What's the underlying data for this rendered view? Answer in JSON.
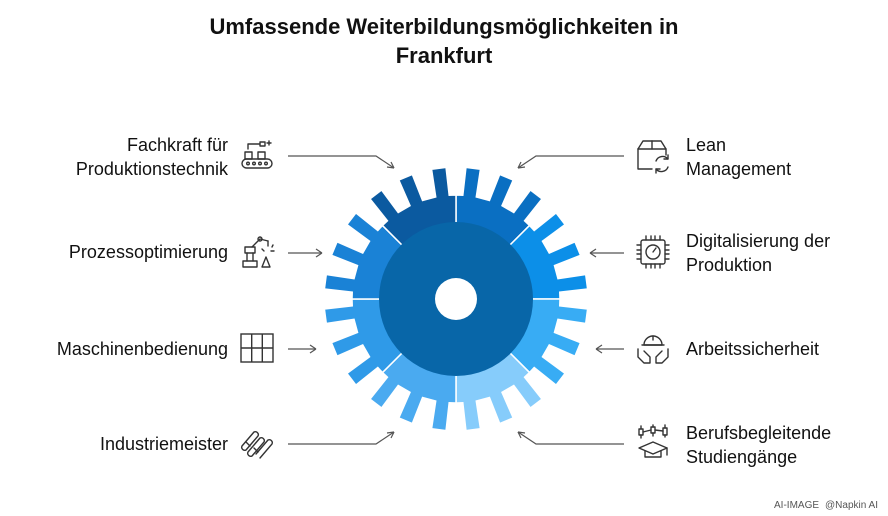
{
  "title": {
    "line1": "Umfassende Weiterbildungsmöglichkeiten in",
    "line2": "Frankfurt"
  },
  "left_items": [
    {
      "line1": "Fachkraft für",
      "line2": "Produktionstechnik",
      "icon": "production-line-icon",
      "color": "#0b5aa0"
    },
    {
      "line1": "Prozessoptimierung",
      "line2": "",
      "icon": "robot-arm-icon",
      "color": "#1a82d6"
    },
    {
      "line1": "Maschinenbedienung",
      "line2": "",
      "icon": "grid-icon",
      "color": "#2f9ae8"
    },
    {
      "line1": "Industriemeister",
      "line2": "",
      "icon": "chain-links-icon",
      "color": "#4aaaf0"
    }
  ],
  "right_items": [
    {
      "line1": "Lean",
      "line2": "Management",
      "icon": "box-recycle-icon",
      "color": "#0a6fc2"
    },
    {
      "line1": "Digitalisierung der",
      "line2": "Produktion",
      "icon": "chip-gauge-icon",
      "color": "#0c8fe8"
    },
    {
      "line1": "Arbeitssicherheit",
      "line2": "",
      "icon": "hands-helmet-icon",
      "color": "#38acf4"
    },
    {
      "line1": "Berufsbegleitende",
      "line2": "Studiengänge",
      "icon": "graduation-chart-icon",
      "color": "#86ccfb"
    }
  ],
  "gear_colors": {
    "hub": "#0866a8",
    "top_left": "#0b5aa0",
    "top_right": "#0a6fc2",
    "right_upper": "#0c8fe8",
    "right_lower": "#38acf4",
    "bottom_right": "#86ccfb",
    "bottom_left": "#4aaaf0",
    "left_lower": "#2f9ae8",
    "left_upper": "#1a82d6"
  },
  "footer": {
    "tag": "AI-IMAGE",
    "brand": "@Napkin AI"
  }
}
